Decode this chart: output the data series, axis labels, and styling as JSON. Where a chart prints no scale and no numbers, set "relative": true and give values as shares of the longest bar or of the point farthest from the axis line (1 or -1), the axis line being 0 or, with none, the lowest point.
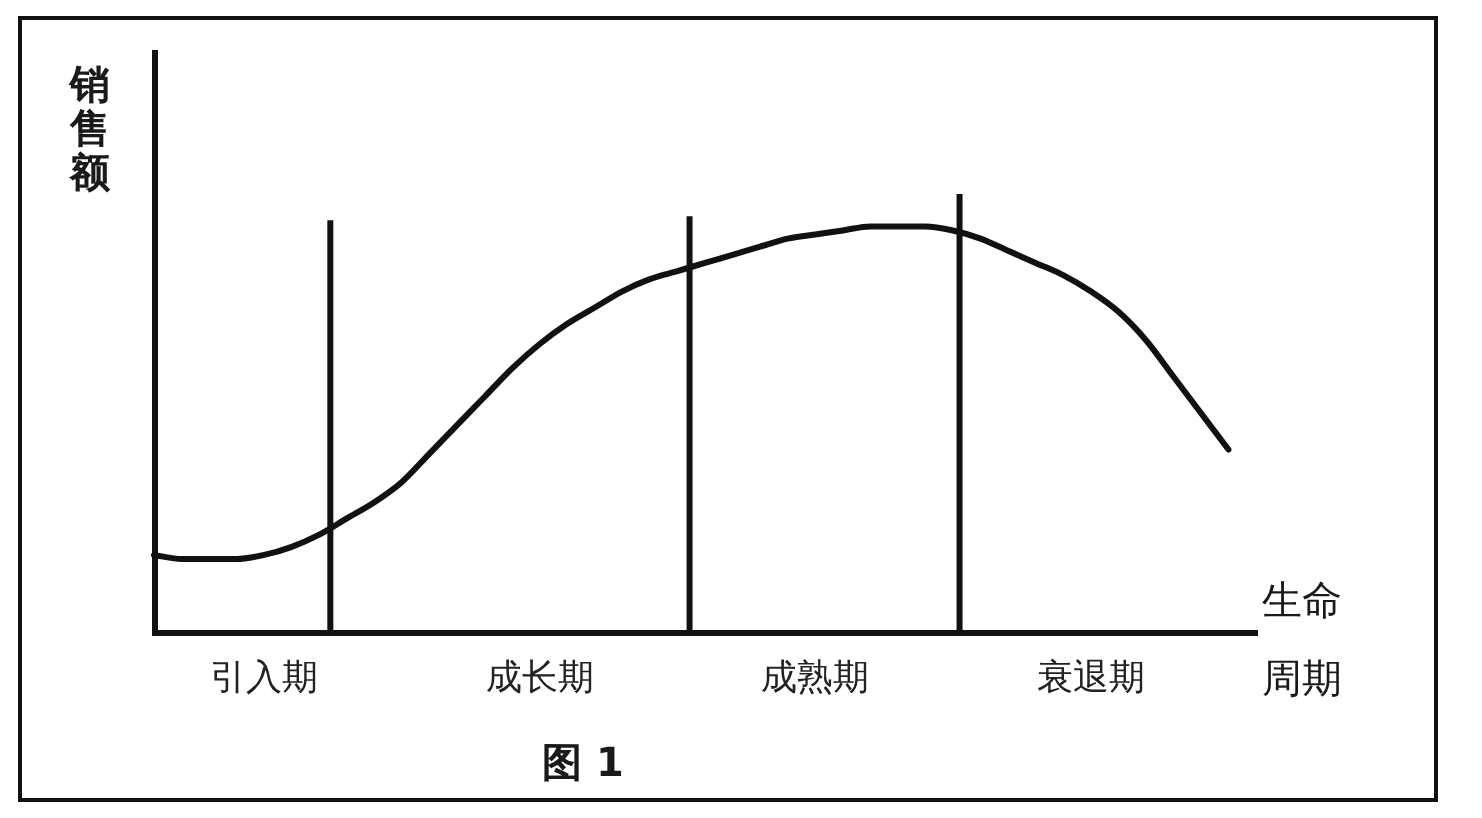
{
  "chart_data": {
    "type": "line",
    "xlabel": "生命周期",
    "ylabel": "销售额",
    "annotations": [
      "图 1"
    ],
    "relative": true,
    "categories": [
      null,
      null,
      null,
      null,
      "引入期",
      null,
      null,
      null,
      null,
      null,
      null,
      null,
      null,
      null,
      "成长期",
      null,
      null,
      null,
      null,
      null,
      null,
      null,
      null,
      null,
      "成熟期",
      null,
      null,
      null,
      null,
      null,
      null,
      null,
      null,
      null,
      "衰退期",
      null,
      null,
      null,
      null,
      null,
      null
    ],
    "values": [
      0.19,
      0.18,
      0.18,
      0.18,
      0.19,
      0.21,
      0.24,
      0.28,
      0.32,
      0.37,
      0.44,
      0.51,
      0.58,
      0.65,
      0.71,
      0.76,
      0.8,
      0.84,
      0.87,
      0.89,
      0.91,
      0.93,
      0.95,
      0.97,
      0.98,
      0.99,
      1.0,
      1.0,
      1.0,
      0.99,
      0.97,
      0.94,
      0.91,
      0.88,
      0.84,
      0.79,
      0.72,
      0.63,
      0.54,
      0.45,
      null
    ],
    "color": "#111111",
    "grid": false,
    "legend": false,
    "marker": "none",
    "line_style": "solid"
  }
}
